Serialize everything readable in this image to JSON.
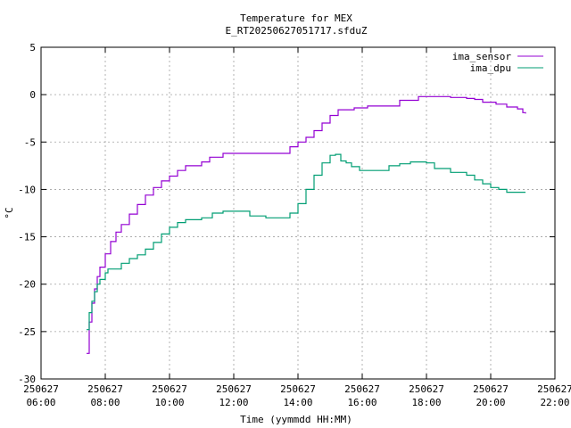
{
  "chart_data": {
    "type": "line",
    "title": "Temperature for MEX",
    "subtitle": "E_RT20250627051717.sfduZ",
    "xlabel": "Time (yymmdd HH:MM)",
    "ylabel": "°C",
    "xlim": [
      "250627 06:00",
      "250627 22:00"
    ],
    "ylim": [
      -30,
      5
    ],
    "grid": true,
    "legend_position": "top-right",
    "x_ticks": [
      {
        "date": "250627",
        "time": "06:00"
      },
      {
        "date": "250627",
        "time": "08:00"
      },
      {
        "date": "250627",
        "time": "10:00"
      },
      {
        "date": "250627",
        "time": "12:00"
      },
      {
        "date": "250627",
        "time": "14:00"
      },
      {
        "date": "250627",
        "time": "16:00"
      },
      {
        "date": "250627",
        "time": "18:00"
      },
      {
        "date": "250627",
        "time": "20:00"
      },
      {
        "date": "250627",
        "time": "22:00"
      }
    ],
    "y_ticks": [
      "5",
      "0",
      "-5",
      "-10",
      "-15",
      "-20",
      "-25",
      "-30"
    ],
    "series": [
      {
        "name": "ima_sensor",
        "color": "#9400d3",
        "points": [
          [
            "07:25",
            -27.3
          ],
          [
            "07:30",
            -24.0
          ],
          [
            "07:35",
            -22.0
          ],
          [
            "07:40",
            -20.5
          ],
          [
            "07:45",
            -19.2
          ],
          [
            "07:50",
            -18.2
          ],
          [
            "08:00",
            -16.8
          ],
          [
            "08:10",
            -15.5
          ],
          [
            "08:20",
            -14.5
          ],
          [
            "08:30",
            -13.7
          ],
          [
            "08:45",
            -12.6
          ],
          [
            "09:00",
            -11.6
          ],
          [
            "09:15",
            -10.6
          ],
          [
            "09:30",
            -9.8
          ],
          [
            "09:45",
            -9.1
          ],
          [
            "10:00",
            -8.6
          ],
          [
            "10:15",
            -8.0
          ],
          [
            "10:30",
            -7.5
          ],
          [
            "11:00",
            -7.1
          ],
          [
            "11:15",
            -6.6
          ],
          [
            "11:40",
            -6.2
          ],
          [
            "12:00",
            -6.2
          ],
          [
            "12:30",
            -6.2
          ],
          [
            "13:00",
            -6.2
          ],
          [
            "13:30",
            -6.2
          ],
          [
            "13:45",
            -5.5
          ],
          [
            "14:00",
            -5.0
          ],
          [
            "14:15",
            -4.5
          ],
          [
            "14:30",
            -3.8
          ],
          [
            "14:45",
            -3.0
          ],
          [
            "15:00",
            -2.2
          ],
          [
            "15:15",
            -1.6
          ],
          [
            "15:45",
            -1.4
          ],
          [
            "16:10",
            -1.2
          ],
          [
            "16:45",
            -1.2
          ],
          [
            "17:10",
            -0.6
          ],
          [
            "17:45",
            -0.2
          ],
          [
            "18:15",
            -0.2
          ],
          [
            "18:45",
            -0.3
          ],
          [
            "19:15",
            -0.4
          ],
          [
            "19:30",
            -0.5
          ],
          [
            "19:45",
            -0.8
          ],
          [
            "20:10",
            -1.0
          ],
          [
            "20:30",
            -1.3
          ],
          [
            "20:50",
            -1.5
          ],
          [
            "21:00",
            -1.9
          ],
          [
            "21:05",
            -2.0
          ]
        ]
      },
      {
        "name": "ima_dpu",
        "color": "#009e73",
        "points": [
          [
            "07:25",
            -24.8
          ],
          [
            "07:30",
            -23.0
          ],
          [
            "07:35",
            -21.8
          ],
          [
            "07:40",
            -20.8
          ],
          [
            "07:45",
            -20.0
          ],
          [
            "07:50",
            -19.5
          ],
          [
            "08:00",
            -18.8
          ],
          [
            "08:05",
            -18.4
          ],
          [
            "08:20",
            -18.4
          ],
          [
            "08:30",
            -17.8
          ],
          [
            "08:45",
            -17.3
          ],
          [
            "09:00",
            -16.9
          ],
          [
            "09:15",
            -16.3
          ],
          [
            "09:30",
            -15.6
          ],
          [
            "09:45",
            -14.7
          ],
          [
            "10:00",
            -14.0
          ],
          [
            "10:15",
            -13.5
          ],
          [
            "10:30",
            -13.2
          ],
          [
            "11:00",
            -13.0
          ],
          [
            "11:20",
            -12.5
          ],
          [
            "11:40",
            -12.3
          ],
          [
            "12:00",
            -12.3
          ],
          [
            "12:30",
            -12.8
          ],
          [
            "13:00",
            -13.0
          ],
          [
            "13:30",
            -13.0
          ],
          [
            "13:45",
            -12.5
          ],
          [
            "14:00",
            -11.5
          ],
          [
            "14:15",
            -10.0
          ],
          [
            "14:30",
            -8.5
          ],
          [
            "14:45",
            -7.2
          ],
          [
            "15:00",
            -6.4
          ],
          [
            "15:10",
            -6.3
          ],
          [
            "15:20",
            -7.0
          ],
          [
            "15:30",
            -7.2
          ],
          [
            "15:40",
            -7.6
          ],
          [
            "15:55",
            -8.0
          ],
          [
            "16:30",
            -8.0
          ],
          [
            "16:50",
            -7.5
          ],
          [
            "17:10",
            -7.3
          ],
          [
            "17:30",
            -7.1
          ],
          [
            "18:00",
            -7.2
          ],
          [
            "18:15",
            -7.8
          ],
          [
            "18:45",
            -8.2
          ],
          [
            "19:15",
            -8.5
          ],
          [
            "19:30",
            -9.0
          ],
          [
            "19:45",
            -9.4
          ],
          [
            "20:00",
            -9.8
          ],
          [
            "20:15",
            -10.0
          ],
          [
            "20:30",
            -10.3
          ],
          [
            "21:05",
            -10.3
          ]
        ]
      }
    ]
  }
}
